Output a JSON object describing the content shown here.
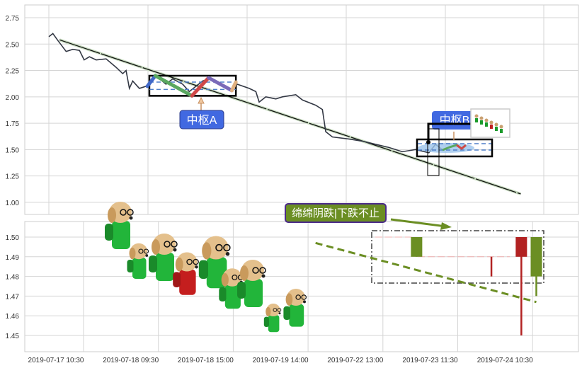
{
  "chart_data": [
    {
      "type": "line",
      "panel": "top",
      "yticks": [
        "2.75",
        "2.50",
        "2.25",
        "2.00",
        "1.75",
        "1.50",
        "1.25",
        "1.00"
      ],
      "ylim": [
        0.92,
        2.87
      ],
      "grid": true,
      "price": {
        "x": [
          0,
          6,
          14,
          26,
          36,
          46,
          53,
          61,
          71,
          86,
          101,
          111,
          116,
          121,
          126,
          136,
          146,
          161,
          176,
          186,
          201,
          211,
          231,
          241,
          261,
          276,
          283,
          301,
          311,
          316,
          326,
          341,
          351,
          371,
          381,
          401,
          411,
          416,
          426,
          451,
          471,
          491,
          511,
          531,
          551,
          571,
          581,
          591
        ],
        "y": [
          2.57,
          2.6,
          2.53,
          2.43,
          2.45,
          2.44,
          2.35,
          2.38,
          2.35,
          2.36,
          2.28,
          2.22,
          2.25,
          2.08,
          2.15,
          2.08,
          2.1,
          2.2,
          2.12,
          2.17,
          2.12,
          2.05,
          2.15,
          2.17,
          2.12,
          2.06,
          2.12,
          2.08,
          2.05,
          1.95,
          2.0,
          1.98,
          2.0,
          2.02,
          1.97,
          1.92,
          1.88,
          1.67,
          1.62,
          1.6,
          1.58,
          1.55,
          1.52,
          1.48,
          1.5,
          1.47,
          1.55,
          1.5
        ]
      },
      "trend_line": {
        "x": [
          16,
          709
        ],
        "y": [
          2.54,
          1.08
        ]
      },
      "pivot_a": {
        "label": "中枢A",
        "x_range": [
          151,
          281
        ],
        "y_range": [
          2.01,
          2.2
        ],
        "zg": 2.14,
        "zd": 2.07,
        "strokes": [
          {
            "x": [
              148,
              160
            ],
            "y": [
              2.1,
              2.2
            ],
            "color": "#4169c8"
          },
          {
            "x": [
              160,
              215
            ],
            "y": [
              2.2,
              2.01
            ],
            "color": "#5aa860"
          },
          {
            "x": [
              215,
              240
            ],
            "y": [
              2.01,
              2.18
            ],
            "color": "#d04848"
          },
          {
            "x": [
              240,
              275
            ],
            "y": [
              2.18,
              2.06
            ],
            "color": "#7a6ab8"
          },
          {
            "x": [
              275,
              281
            ],
            "y": [
              2.06,
              2.14
            ],
            "color": "#e0b080"
          }
        ]
      },
      "pivot_b": {
        "label": "中枢B",
        "x_range": [
          519,
          626
        ],
        "y_range": [
          1.44,
          1.6
        ],
        "zg": 1.55,
        "zd": 1.5
      },
      "colors": {
        "price": "#333844",
        "label_bg": "#4169e1",
        "trend": "#000000"
      }
    },
    {
      "type": "candlestick",
      "panel": "bottom",
      "xticks": [
        "2019-07-17 10:30",
        "2019-07-18 09:30",
        "2019-07-18 15:00",
        "2019-07-19 14:00",
        "2019-07-22 13:00",
        "2019-07-23 11:30",
        "2019-07-24 10:30"
      ],
      "yticks": [
        "1.50",
        "1.49",
        "1.48",
        "1.47",
        "1.46",
        "1.45"
      ],
      "ylim": [
        1.442,
        1.508
      ],
      "grid": true,
      "candles": [
        {
          "t": 5.45,
          "open": 1.49,
          "close": 1.5,
          "high": 1.5,
          "low": 1.49,
          "color": "#6b8e23"
        },
        {
          "t": 6.45,
          "open": 1.49,
          "close": 1.48,
          "high": 1.49,
          "low": 1.48,
          "color": "#b22222"
        },
        {
          "t": 6.85,
          "open": 1.5,
          "close": 1.49,
          "high": 1.5,
          "low": 1.45,
          "color": "#b22222"
        },
        {
          "t": 7.05,
          "open": 1.48,
          "close": 1.5,
          "high": 1.5,
          "low": 1.47,
          "color": "#6b8e23"
        }
      ],
      "trend_line": {
        "t": [
          4.1,
          7.05
        ],
        "y": [
          1.497,
          1.467
        ]
      },
      "annotation": {
        "text": "绵绵阴跌|下跌不止",
        "bg": "#6b8e23",
        "border": "#4b2a8a"
      }
    }
  ]
}
